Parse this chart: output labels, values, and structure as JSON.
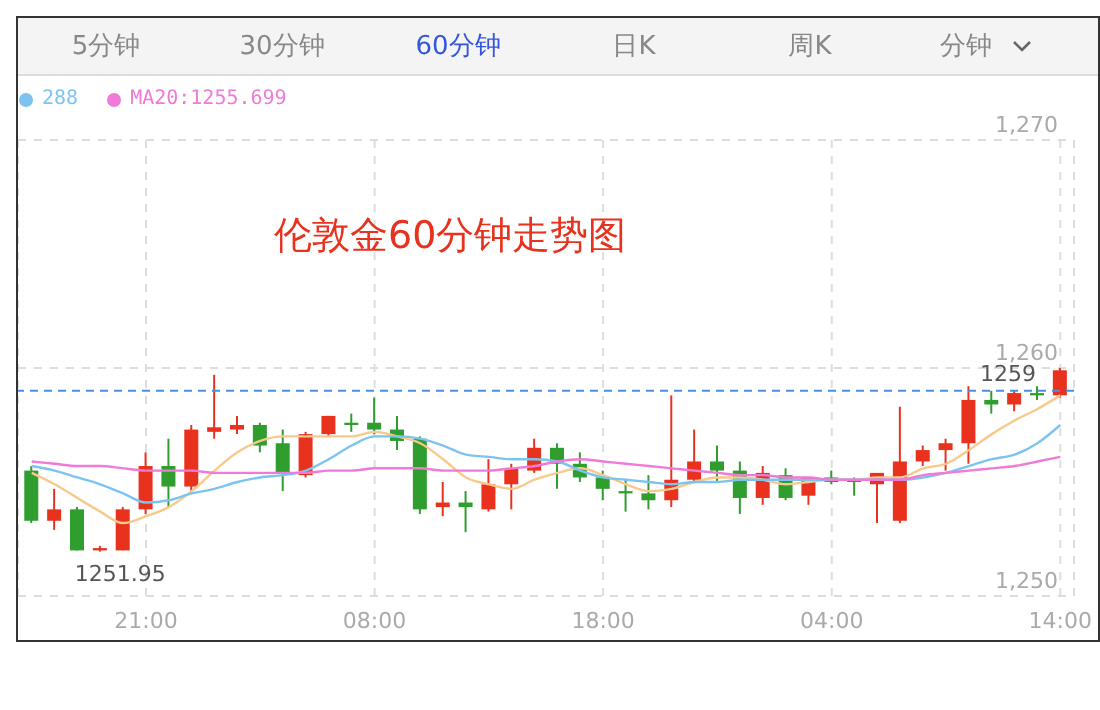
{
  "chart_data": {
    "type": "candlestick",
    "title": "伦敦金60分钟走势图",
    "annotations": [
      "5分钟",
      "30分钟",
      "60分钟",
      "日K",
      "周K",
      "分钟",
      {
        "text": "1251.95",
        "y": 1251.95
      }
    ],
    "categories": [
      null,
      null,
      null,
      null,
      null,
      "21:00",
      null,
      null,
      null,
      null,
      null,
      null,
      null,
      null,
      null,
      "08:00",
      null,
      null,
      null,
      null,
      null,
      null,
      null,
      null,
      null,
      "18:00",
      null,
      null,
      null,
      null,
      null,
      null,
      null,
      null,
      null,
      "04:00",
      null,
      null,
      null,
      null,
      null,
      null,
      null,
      null,
      null,
      "14:00"
    ],
    "ohlc": [
      [
        1255.5,
        1255.7,
        1253.2,
        1253.3
      ],
      [
        1253.3,
        1254.7,
        1252.9,
        1253.8
      ],
      [
        1253.8,
        1253.9,
        1252.0,
        1252.0
      ],
      [
        1252.0,
        1252.2,
        1251.95,
        1252.1
      ],
      [
        1252.0,
        1253.9,
        1252.0,
        1253.8
      ],
      [
        1253.8,
        1256.3,
        1253.6,
        1255.7
      ],
      [
        1255.7,
        1256.9,
        1253.9,
        1254.8
      ],
      [
        1254.8,
        1257.5,
        1254.5,
        1257.3
      ],
      [
        1257.2,
        1259.7,
        1256.9,
        1257.4
      ],
      [
        1257.3,
        1257.9,
        1257.1,
        1257.5
      ],
      [
        1257.5,
        1257.6,
        1256.3,
        1256.6
      ],
      [
        1256.7,
        1257.3,
        1254.6,
        1255.4
      ],
      [
        1255.3,
        1257.2,
        1255.2,
        1257.1
      ],
      [
        1257.1,
        1257.9,
        1257.0,
        1257.9
      ],
      [
        1257.6,
        1258.0,
        1257.2,
        1257.5
      ],
      [
        1257.6,
        1258.7,
        1257.1,
        1257.3
      ],
      [
        1257.3,
        1257.9,
        1256.4,
        1256.8
      ],
      [
        1256.9,
        1257.0,
        1253.6,
        1253.8
      ],
      [
        1253.9,
        1255.0,
        1253.5,
        1254.1
      ],
      [
        1254.1,
        1254.6,
        1252.8,
        1253.9
      ],
      [
        1253.8,
        1256.0,
        1253.7,
        1254.9
      ],
      [
        1254.9,
        1255.8,
        1253.8,
        1255.6
      ],
      [
        1255.5,
        1256.9,
        1255.4,
        1256.5
      ],
      [
        1256.5,
        1256.7,
        1254.7,
        1255.8
      ],
      [
        1255.8,
        1256.3,
        1255.0,
        1255.2
      ],
      [
        1255.2,
        1255.5,
        1254.2,
        1254.7
      ],
      [
        1254.6,
        1255.1,
        1253.7,
        1254.5
      ],
      [
        1254.5,
        1255.3,
        1253.8,
        1254.2
      ],
      [
        1254.2,
        1258.8,
        1253.9,
        1255.1
      ],
      [
        1255.1,
        1257.3,
        1255.0,
        1255.9
      ],
      [
        1255.9,
        1256.6,
        1255.0,
        1255.5
      ],
      [
        1255.5,
        1255.9,
        1253.6,
        1254.3
      ],
      [
        1254.3,
        1255.7,
        1254.0,
        1255.4
      ],
      [
        1255.3,
        1255.6,
        1254.2,
        1254.3
      ],
      [
        1254.4,
        1255.2,
        1254.0,
        1255.2
      ],
      [
        1255.2,
        1255.5,
        1254.9,
        1255.0
      ],
      [
        1255.1,
        1255.2,
        1254.4,
        1255.0
      ],
      [
        1254.9,
        1255.4,
        1253.2,
        1255.4
      ],
      [
        1253.3,
        1258.3,
        1253.2,
        1255.9
      ],
      [
        1255.9,
        1256.6,
        1255.7,
        1256.4
      ],
      [
        1256.4,
        1256.9,
        1255.5,
        1256.7
      ],
      [
        1256.7,
        1259.2,
        1255.8,
        1258.6
      ],
      [
        1258.6,
        1259.0,
        1258.0,
        1258.4
      ],
      [
        1258.4,
        1259.0,
        1258.1,
        1258.9
      ],
      [
        1258.9,
        1259.2,
        1258.6,
        1258.8
      ],
      [
        1258.8,
        1260.0,
        1258.7,
        1259.9
      ]
    ],
    "colors": [
      "#2f9e2f",
      "#e8321e",
      "#2f9e2f",
      "#e8321e",
      "#e8321e",
      "#e8321e",
      "#2f9e2f",
      "#e8321e",
      "#e8321e",
      "#e8321e",
      "#2f9e2f",
      "#2f9e2f",
      "#e8321e",
      "#e8321e",
      "#2f9e2f",
      "#2f9e2f",
      "#2f9e2f",
      "#2f9e2f",
      "#e8321e",
      "#2f9e2f",
      "#e8321e",
      "#e8321e",
      "#e8321e",
      "#2f9e2f",
      "#2f9e2f",
      "#2f9e2f",
      "#2f9e2f",
      "#2f9e2f",
      "#e8321e",
      "#e8321e",
      "#2f9e2f",
      "#2f9e2f",
      "#e8321e",
      "#2f9e2f",
      "#e8321e",
      "#2f9e2f",
      "#2f9e2f",
      "#e8321e",
      "#e8321e",
      "#e8321e",
      "#e8321e",
      "#e8321e",
      "#2f9e2f",
      "#e8321e",
      "#2f9e2f",
      "#e8321e"
    ],
    "series": [
      {
        "type": "line",
        "color": "#f8c98a",
        "values": [
          1255.4,
          1254.9,
          1254.3,
          1253.7,
          1253.2,
          1253.5,
          1253.9,
          1254.6,
          1255.5,
          1256.3,
          1256.8,
          1257.0,
          1257.0,
          1257.0,
          1257.0,
          1257.2,
          1257.0,
          1256.7,
          1256.0,
          1255.2,
          1254.9,
          1254.7,
          1255.1,
          1255.4,
          1255.6,
          1255.3,
          1254.9,
          1254.6,
          1254.7,
          1255.0,
          1255.2,
          1255.2,
          1255.1,
          1254.9,
          1255.0,
          1255.1,
          1255.1,
          1255.2,
          1255.2,
          1255.6,
          1255.8,
          1256.4,
          1257.1,
          1257.7,
          1258.2,
          1258.8
        ]
      },
      {
        "type": "line",
        "name": "288",
        "color": "#7cc4f0",
        "values": [
          1255.7,
          1255.5,
          1255.2,
          1254.9,
          1254.5,
          1254.1,
          1254.2,
          1254.5,
          1254.7,
          1255.0,
          1255.2,
          1255.3,
          1255.5,
          1256.0,
          1256.6,
          1257.0,
          1257.0,
          1256.9,
          1256.6,
          1256.2,
          1256.1,
          1256.0,
          1256.0,
          1255.9,
          1255.5,
          1255.2,
          1255.1,
          1255.0,
          1254.9,
          1255.0,
          1255.0,
          1255.1,
          1255.1,
          1255.1,
          1255.1,
          1255.1,
          1255.1,
          1255.1,
          1255.1,
          1255.2,
          1255.4,
          1255.7,
          1256.0,
          1256.2,
          1256.7,
          1257.5
        ]
      },
      {
        "type": "line",
        "name": "MA20:1255.699",
        "color": "#f07ad8",
        "values": [
          1255.9,
          1255.8,
          1255.7,
          1255.7,
          1255.6,
          1255.5,
          1255.5,
          1255.5,
          1255.4,
          1255.4,
          1255.4,
          1255.4,
          1255.4,
          1255.5,
          1255.5,
          1255.6,
          1255.6,
          1255.6,
          1255.5,
          1255.5,
          1255.5,
          1255.6,
          1255.7,
          1255.9,
          1256.0,
          1255.9,
          1255.8,
          1255.7,
          1255.6,
          1255.5,
          1255.4,
          1255.3,
          1255.3,
          1255.2,
          1255.2,
          1255.1,
          1255.1,
          1255.1,
          1255.1,
          1255.3,
          1255.4,
          1255.5,
          1255.6,
          1255.7,
          1255.9,
          1256.1
        ]
      }
    ],
    "ylim": [
      1250,
      1270
    ],
    "yticks": [
      {
        "value": 1250,
        "label": "1,250"
      },
      {
        "value": 1260,
        "label": "1,260"
      },
      {
        "value": 1270,
        "label": "1,270"
      }
    ],
    "ref_lines": [
      {
        "axis": "y",
        "value": 1259,
        "label": "1259",
        "color": "#4a90e2",
        "line_style": "dashed"
      }
    ],
    "grid": true,
    "legend": "top left",
    "marker": "none"
  }
}
